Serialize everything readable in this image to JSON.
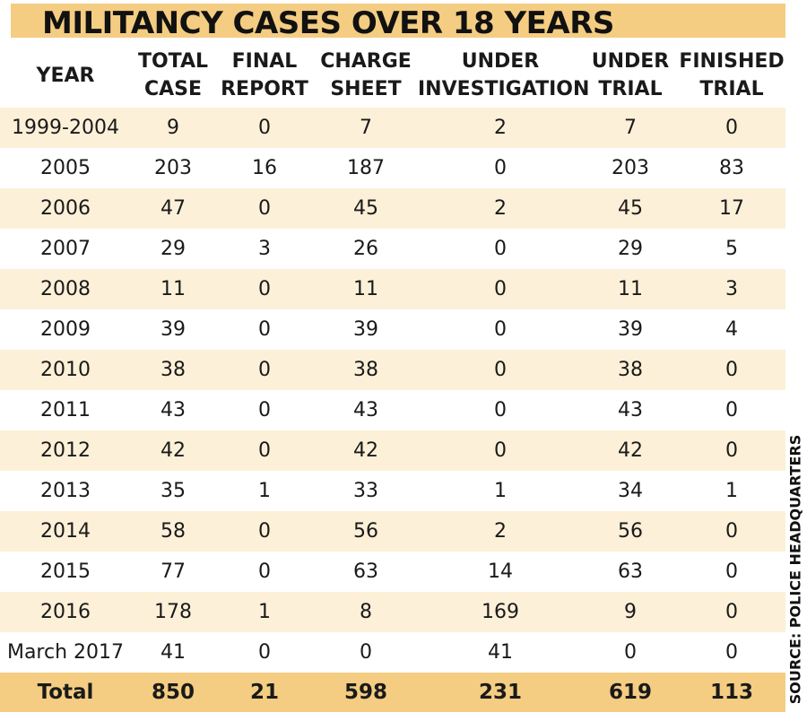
{
  "title": "MILITANCY CASES OVER 18 YEARS",
  "source": "SOURCE: POLICE HEADQUARTERS",
  "colors": {
    "accent": "#f4cd82",
    "stripe": "#fdf0d8",
    "text": "#1a1a1a"
  },
  "chart_data": {
    "type": "table",
    "title": "MILITANCY CASES OVER 18 YEARS",
    "columns": [
      "YEAR",
      "TOTAL\nCASE",
      "FINAL\nREPORT",
      "CHARGE\nSHEET",
      "UNDER\nINVESTIGATION",
      "UNDER\nTRIAL",
      "FINISHED\nTRIAL"
    ],
    "rows": [
      [
        "1999-2004",
        "9",
        "0",
        "7",
        "2",
        "7",
        "0"
      ],
      [
        "2005",
        "203",
        "16",
        "187",
        "0",
        "203",
        "83"
      ],
      [
        "2006",
        "47",
        "0",
        "45",
        "2",
        "45",
        "17"
      ],
      [
        "2007",
        "29",
        "3",
        "26",
        "0",
        "29",
        "5"
      ],
      [
        "2008",
        "11",
        "0",
        "11",
        "0",
        "11",
        "3"
      ],
      [
        "2009",
        "39",
        "0",
        "39",
        "0",
        "39",
        "4"
      ],
      [
        "2010",
        "38",
        "0",
        "38",
        "0",
        "38",
        "0"
      ],
      [
        "2011",
        "43",
        "0",
        "43",
        "0",
        "43",
        "0"
      ],
      [
        "2012",
        "42",
        "0",
        "42",
        "0",
        "42",
        "0"
      ],
      [
        "2013",
        "35",
        "1",
        "33",
        "1",
        "34",
        "1"
      ],
      [
        "2014",
        "58",
        "0",
        "56",
        "2",
        "56",
        "0"
      ],
      [
        "2015",
        "77",
        "0",
        "63",
        "14",
        "63",
        "0"
      ],
      [
        "2016",
        "178",
        "1",
        "8",
        "169",
        "9",
        "0"
      ],
      [
        "March 2017",
        "41",
        "0",
        "0",
        "41",
        "0",
        "0"
      ]
    ],
    "total": [
      "Total",
      "850",
      "21",
      "598",
      "231",
      "619",
      "113"
    ]
  }
}
